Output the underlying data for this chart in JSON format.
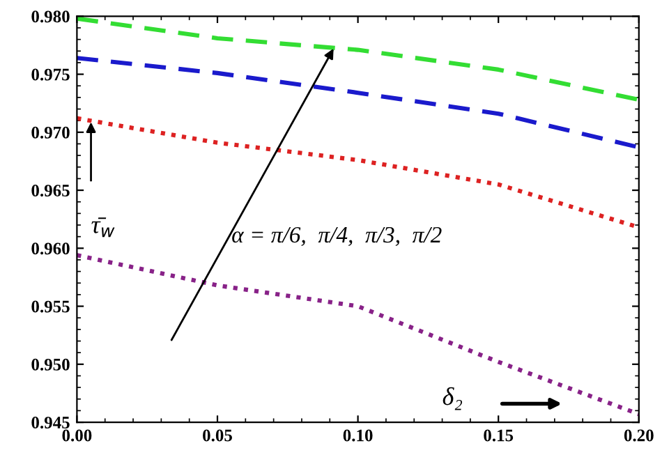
{
  "chart_data": {
    "type": "line",
    "xlim": [
      0,
      0.2
    ],
    "ylim": [
      0.945,
      0.98
    ],
    "xticks": [
      {
        "value": 0,
        "label": "0.00"
      },
      {
        "value": 0.05,
        "label": "0.05"
      },
      {
        "value": 0.1,
        "label": "0.10"
      },
      {
        "value": 0.15,
        "label": "0.15"
      },
      {
        "value": 0.2,
        "label": "0.20"
      }
    ],
    "yticks": [
      0.945,
      {
        "value": 0.95,
        "label": "0.950"
      },
      0.955,
      {
        "value": 0.96,
        "label": "0.960"
      },
      0.965,
      {
        "value": 0.97,
        "label": "0.970"
      },
      0.975,
      {
        "value": 0.98,
        "label": "0.980"
      }
    ],
    "x": [
      0,
      0.05,
      0.1,
      0.15,
      0.2
    ],
    "series": [
      {
        "color": "#33dd33",
        "line_style": "dashed",
        "values": [
          0.9798,
          0.9781,
          0.9771,
          0.9754,
          0.9728
        ]
      },
      {
        "color": "#1a1acc",
        "line_style": "dashed",
        "values": [
          0.9764,
          0.9751,
          0.9734,
          0.9716,
          0.9687
        ]
      },
      {
        "color": "#dd2222",
        "line_style": "dotted",
        "values": [
          0.9712,
          0.9691,
          0.9676,
          0.9655,
          0.9618
        ]
      },
      {
        "color": "#882288",
        "line_style": "dotted",
        "values": [
          0.9594,
          0.9568,
          0.955,
          0.9502,
          0.9457
        ]
      }
    ],
    "annotations": [
      "τ̄$_{w}$",
      "α = π/6,  π/4,  π/3,  π/2",
      "δ₂"
    ],
    "grid": false,
    "legend": false
  }
}
